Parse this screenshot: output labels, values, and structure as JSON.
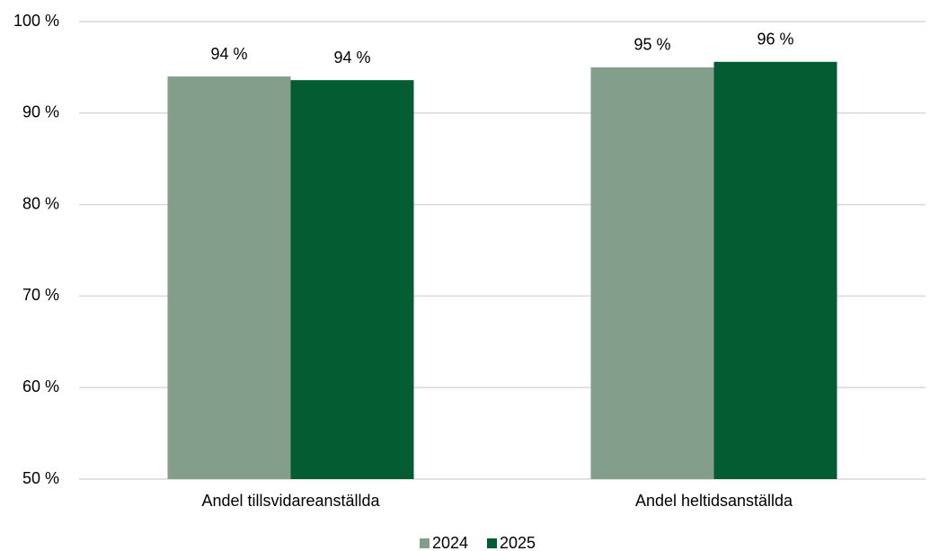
{
  "chart_data": {
    "type": "bar",
    "categories": [
      "Andel tillsvidareanställda",
      "Andel heltidsanställda"
    ],
    "series": [
      {
        "name": "2024",
        "color": "#849e8c",
        "values": [
          94.0,
          95.0
        ],
        "value_labels": [
          "94 %",
          "95 %"
        ]
      },
      {
        "name": "2025",
        "color": "#045c32",
        "values": [
          93.6,
          95.6
        ],
        "value_labels": [
          "94 %",
          "96 %"
        ]
      }
    ],
    "ylim": [
      50,
      100
    ],
    "yticks": [
      {
        "value": 50,
        "label": "50 %"
      },
      {
        "value": 60,
        "label": "60 %"
      },
      {
        "value": 70,
        "label": "70 %"
      },
      {
        "value": 80,
        "label": "80 %"
      },
      {
        "value": 90,
        "label": "90 %"
      },
      {
        "value": 100,
        "label": "100 %"
      }
    ],
    "grid": true,
    "legend": "bottom"
  }
}
